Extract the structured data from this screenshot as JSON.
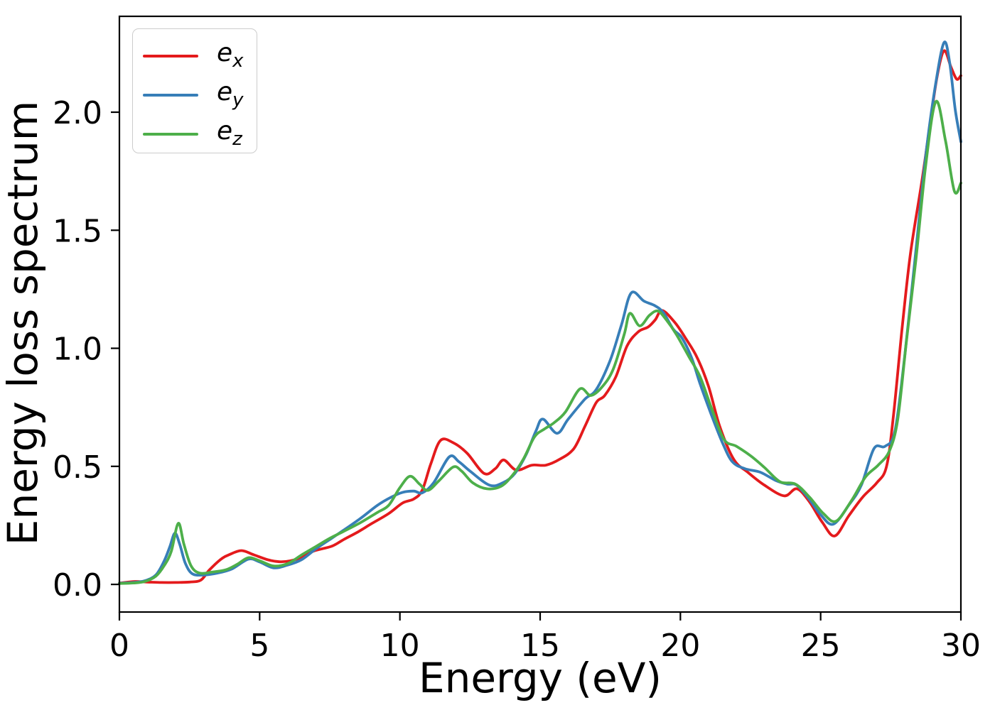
{
  "chart_data": {
    "type": "line",
    "title": "",
    "xlabel": "Energy (eV)",
    "ylabel": "Energy loss spectrum",
    "xlim": [
      0,
      30
    ],
    "ylim": [
      -0.117,
      2.406
    ],
    "x_ticks": [
      "0",
      "5",
      "10",
      "15",
      "20",
      "25",
      "30"
    ],
    "x_tick_values": [
      0,
      5,
      10,
      15,
      20,
      25,
      30
    ],
    "y_ticks": [
      "0.0",
      "0.5",
      "1.0",
      "1.5",
      "2.0"
    ],
    "y_tick_values": [
      0.0,
      0.5,
      1.0,
      1.5,
      2.0
    ],
    "grid": false,
    "legend_position": "upper left",
    "axis_color": "#000000",
    "series": [
      {
        "name": "e_x",
        "label_base": "e",
        "label_sub": "x",
        "color": "#e41a1c",
        "points": [
          [
            0,
            0.005
          ],
          [
            0.5,
            0.012
          ],
          [
            1.0,
            0.01
          ],
          [
            1.5,
            0.008
          ],
          [
            2.0,
            0.008
          ],
          [
            2.5,
            0.01
          ],
          [
            2.9,
            0.018
          ],
          [
            3.2,
            0.06
          ],
          [
            3.6,
            0.105
          ],
          [
            3.9,
            0.125
          ],
          [
            4.35,
            0.143
          ],
          [
            4.8,
            0.125
          ],
          [
            5.3,
            0.104
          ],
          [
            5.7,
            0.096
          ],
          [
            6.1,
            0.1
          ],
          [
            6.5,
            0.115
          ],
          [
            6.9,
            0.14
          ],
          [
            7.2,
            0.15
          ],
          [
            7.6,
            0.163
          ],
          [
            8.0,
            0.19
          ],
          [
            8.5,
            0.222
          ],
          [
            9.0,
            0.258
          ],
          [
            9.6,
            0.3
          ],
          [
            10.1,
            0.345
          ],
          [
            10.5,
            0.362
          ],
          [
            10.8,
            0.4
          ],
          [
            11.1,
            0.51
          ],
          [
            11.45,
            0.61
          ],
          [
            11.9,
            0.6
          ],
          [
            12.4,
            0.555
          ],
          [
            13.0,
            0.47
          ],
          [
            13.4,
            0.49
          ],
          [
            13.7,
            0.527
          ],
          [
            14.15,
            0.484
          ],
          [
            14.7,
            0.505
          ],
          [
            15.2,
            0.505
          ],
          [
            15.7,
            0.53
          ],
          [
            16.2,
            0.575
          ],
          [
            16.6,
            0.67
          ],
          [
            17.0,
            0.77
          ],
          [
            17.3,
            0.8
          ],
          [
            17.7,
            0.88
          ],
          [
            18.1,
            1.01
          ],
          [
            18.5,
            1.07
          ],
          [
            18.85,
            1.09
          ],
          [
            19.1,
            1.12
          ],
          [
            19.35,
            1.16
          ],
          [
            19.8,
            1.11
          ],
          [
            20.2,
            1.04
          ],
          [
            20.6,
            0.96
          ],
          [
            21.0,
            0.84
          ],
          [
            21.4,
            0.67
          ],
          [
            21.9,
            0.53
          ],
          [
            22.4,
            0.475
          ],
          [
            23.0,
            0.42
          ],
          [
            23.7,
            0.375
          ],
          [
            24.15,
            0.405
          ],
          [
            24.6,
            0.35
          ],
          [
            25.05,
            0.265
          ],
          [
            25.5,
            0.205
          ],
          [
            26.0,
            0.29
          ],
          [
            26.5,
            0.37
          ],
          [
            27.0,
            0.43
          ],
          [
            27.35,
            0.5
          ],
          [
            27.6,
            0.72
          ],
          [
            27.9,
            1.08
          ],
          [
            28.2,
            1.4
          ],
          [
            28.6,
            1.7
          ],
          [
            28.9,
            1.95
          ],
          [
            29.15,
            2.15
          ],
          [
            29.4,
            2.26
          ],
          [
            29.65,
            2.19
          ],
          [
            29.85,
            2.14
          ],
          [
            30,
            2.155
          ]
        ]
      },
      {
        "name": "e_y",
        "label_base": "e",
        "label_sub": "y",
        "color": "#377eb8",
        "points": [
          [
            0,
            0.005
          ],
          [
            0.5,
            0.008
          ],
          [
            0.9,
            0.015
          ],
          [
            1.3,
            0.04
          ],
          [
            1.6,
            0.1
          ],
          [
            1.8,
            0.16
          ],
          [
            1.98,
            0.217
          ],
          [
            2.15,
            0.17
          ],
          [
            2.35,
            0.09
          ],
          [
            2.6,
            0.045
          ],
          [
            3.0,
            0.04
          ],
          [
            3.5,
            0.048
          ],
          [
            4.0,
            0.065
          ],
          [
            4.6,
            0.107
          ],
          [
            5.0,
            0.095
          ],
          [
            5.5,
            0.07
          ],
          [
            6.0,
            0.082
          ],
          [
            6.5,
            0.105
          ],
          [
            7.0,
            0.15
          ],
          [
            7.5,
            0.19
          ],
          [
            8.0,
            0.23
          ],
          [
            8.6,
            0.28
          ],
          [
            9.2,
            0.335
          ],
          [
            9.7,
            0.37
          ],
          [
            10.1,
            0.39
          ],
          [
            10.5,
            0.395
          ],
          [
            10.8,
            0.388
          ],
          [
            11.2,
            0.43
          ],
          [
            11.76,
            0.54
          ],
          [
            12.1,
            0.52
          ],
          [
            12.5,
            0.48
          ],
          [
            13.2,
            0.42
          ],
          [
            13.7,
            0.432
          ],
          [
            14.1,
            0.47
          ],
          [
            14.5,
            0.55
          ],
          [
            14.85,
            0.65
          ],
          [
            15.1,
            0.7
          ],
          [
            15.6,
            0.64
          ],
          [
            16.0,
            0.7
          ],
          [
            16.6,
            0.785
          ],
          [
            17.0,
            0.825
          ],
          [
            17.5,
            0.95
          ],
          [
            17.9,
            1.1
          ],
          [
            18.25,
            1.235
          ],
          [
            18.7,
            1.2
          ],
          [
            19.1,
            1.18
          ],
          [
            19.4,
            1.15
          ],
          [
            19.75,
            1.08
          ],
          [
            20.05,
            1.045
          ],
          [
            20.4,
            0.96
          ],
          [
            20.7,
            0.85
          ],
          [
            21.1,
            0.72
          ],
          [
            21.5,
            0.6
          ],
          [
            21.85,
            0.52
          ],
          [
            22.3,
            0.49
          ],
          [
            22.85,
            0.475
          ],
          [
            23.4,
            0.44
          ],
          [
            23.8,
            0.425
          ],
          [
            24.15,
            0.42
          ],
          [
            24.6,
            0.36
          ],
          [
            25.0,
            0.295
          ],
          [
            25.45,
            0.255
          ],
          [
            26.0,
            0.335
          ],
          [
            26.45,
            0.42
          ],
          [
            26.9,
            0.575
          ],
          [
            27.3,
            0.585
          ],
          [
            27.65,
            0.65
          ],
          [
            28.0,
            0.97
          ],
          [
            28.4,
            1.42
          ],
          [
            28.75,
            1.82
          ],
          [
            29.1,
            2.12
          ],
          [
            29.4,
            2.295
          ],
          [
            29.6,
            2.21
          ],
          [
            29.8,
            2.01
          ],
          [
            30,
            1.875
          ]
        ]
      },
      {
        "name": "e_z",
        "label_base": "e",
        "label_sub": "z",
        "color": "#4daf4a",
        "points": [
          [
            0,
            0.004
          ],
          [
            0.5,
            0.006
          ],
          [
            0.9,
            0.012
          ],
          [
            1.3,
            0.035
          ],
          [
            1.6,
            0.08
          ],
          [
            1.85,
            0.14
          ],
          [
            2.1,
            0.259
          ],
          [
            2.3,
            0.17
          ],
          [
            2.55,
            0.08
          ],
          [
            2.85,
            0.048
          ],
          [
            3.3,
            0.052
          ],
          [
            3.8,
            0.062
          ],
          [
            4.2,
            0.085
          ],
          [
            4.6,
            0.113
          ],
          [
            5.0,
            0.1
          ],
          [
            5.5,
            0.078
          ],
          [
            6.0,
            0.088
          ],
          [
            6.5,
            0.125
          ],
          [
            7.0,
            0.16
          ],
          [
            7.5,
            0.195
          ],
          [
            8.0,
            0.225
          ],
          [
            8.6,
            0.262
          ],
          [
            9.2,
            0.305
          ],
          [
            9.6,
            0.335
          ],
          [
            10.0,
            0.41
          ],
          [
            10.36,
            0.458
          ],
          [
            10.7,
            0.425
          ],
          [
            11.0,
            0.398
          ],
          [
            11.4,
            0.44
          ],
          [
            11.9,
            0.497
          ],
          [
            12.2,
            0.48
          ],
          [
            12.6,
            0.43
          ],
          [
            13.1,
            0.405
          ],
          [
            13.6,
            0.415
          ],
          [
            14.0,
            0.46
          ],
          [
            14.4,
            0.53
          ],
          [
            14.8,
            0.625
          ],
          [
            15.15,
            0.658
          ],
          [
            15.5,
            0.685
          ],
          [
            15.9,
            0.73
          ],
          [
            16.42,
            0.828
          ],
          [
            16.8,
            0.8
          ],
          [
            17.2,
            0.835
          ],
          [
            17.6,
            0.91
          ],
          [
            18.0,
            1.06
          ],
          [
            18.2,
            1.148
          ],
          [
            18.55,
            1.095
          ],
          [
            18.9,
            1.14
          ],
          [
            19.2,
            1.158
          ],
          [
            19.5,
            1.12
          ],
          [
            19.85,
            1.06
          ],
          [
            20.3,
            0.965
          ],
          [
            20.7,
            0.88
          ],
          [
            21.1,
            0.75
          ],
          [
            21.55,
            0.615
          ],
          [
            22.0,
            0.585
          ],
          [
            22.5,
            0.545
          ],
          [
            23.0,
            0.495
          ],
          [
            23.55,
            0.435
          ],
          [
            24.1,
            0.425
          ],
          [
            24.6,
            0.37
          ],
          [
            25.1,
            0.3
          ],
          [
            25.55,
            0.268
          ],
          [
            26.1,
            0.355
          ],
          [
            26.6,
            0.455
          ],
          [
            27.05,
            0.505
          ],
          [
            27.45,
            0.565
          ],
          [
            27.75,
            0.7
          ],
          [
            28.05,
            1.02
          ],
          [
            28.4,
            1.38
          ],
          [
            28.75,
            1.78
          ],
          [
            29.11,
            2.045
          ],
          [
            29.45,
            1.88
          ],
          [
            29.77,
            1.665
          ],
          [
            30,
            1.7
          ]
        ]
      }
    ]
  }
}
